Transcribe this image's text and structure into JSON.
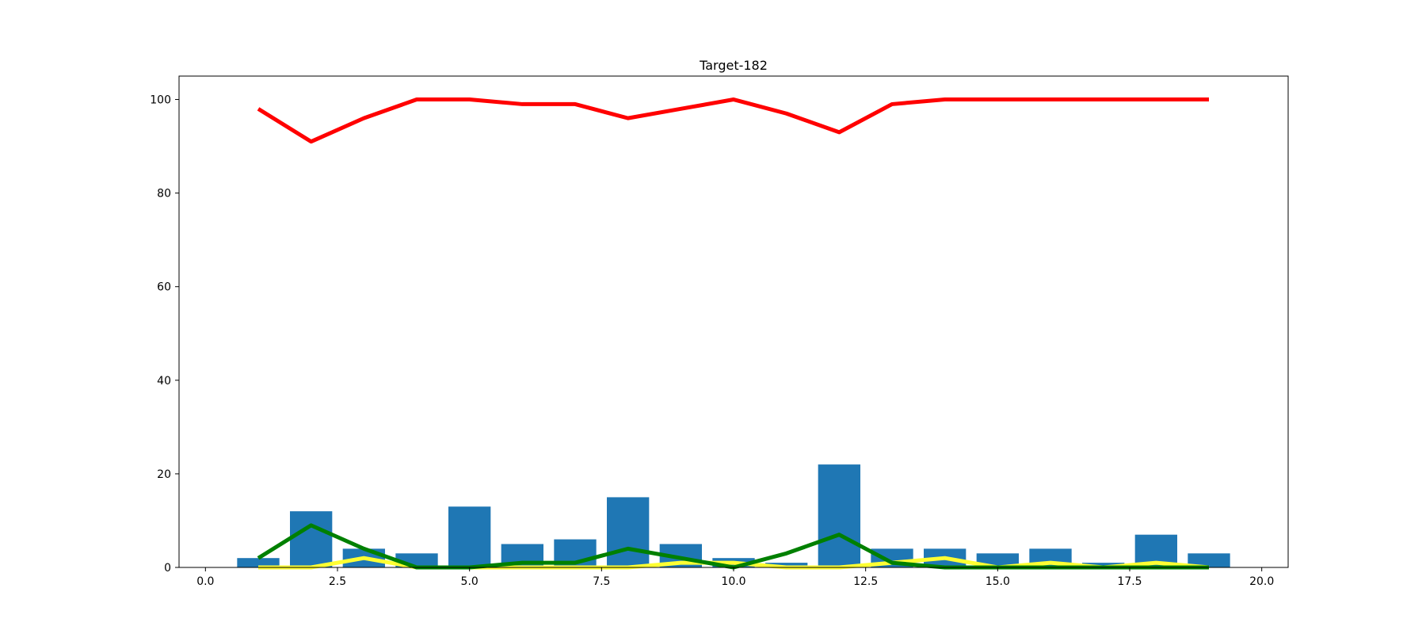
{
  "chart_data": {
    "type": "bar",
    "title": "Target-182",
    "xlabel": "",
    "ylabel": "",
    "xlim": [
      -0.5,
      20.5
    ],
    "ylim": [
      0,
      105
    ],
    "xticks": [
      0.0,
      2.5,
      5.0,
      7.5,
      10.0,
      12.5,
      15.0,
      17.5,
      20.0
    ],
    "xtick_labels": [
      "0.0",
      "2.5",
      "5.0",
      "7.5",
      "10.0",
      "12.5",
      "15.0",
      "17.5",
      "20.0"
    ],
    "yticks": [
      0,
      20,
      40,
      60,
      80,
      100
    ],
    "ytick_labels": [
      "0",
      "20",
      "40",
      "60",
      "80",
      "100"
    ],
    "grid": false,
    "x": [
      1,
      2,
      3,
      4,
      5,
      6,
      7,
      8,
      9,
      10,
      11,
      12,
      13,
      14,
      15,
      16,
      17,
      18,
      19
    ],
    "bars": {
      "color": "#1f77b4",
      "width": 0.8,
      "values": [
        2,
        12,
        4,
        3,
        13,
        5,
        6,
        15,
        5,
        2,
        1,
        22,
        4,
        4,
        3,
        4,
        1,
        7,
        3
      ]
    },
    "series": [
      {
        "color": "#ff0000",
        "values": [
          98,
          91,
          96,
          100,
          100,
          99,
          99,
          96,
          98,
          100,
          97,
          93,
          99,
          100,
          100,
          100,
          100,
          100,
          100
        ]
      },
      {
        "color": "#ffff33",
        "values": [
          0,
          0,
          2,
          0,
          0,
          0,
          0,
          0,
          1,
          1,
          0,
          0,
          1,
          2,
          0,
          1,
          0,
          1,
          0
        ]
      },
      {
        "color": "#008000",
        "values": [
          2,
          9,
          4,
          0,
          0,
          1,
          1,
          4,
          2,
          0,
          3,
          7,
          1,
          0,
          0,
          0,
          0,
          0,
          0
        ]
      }
    ]
  }
}
